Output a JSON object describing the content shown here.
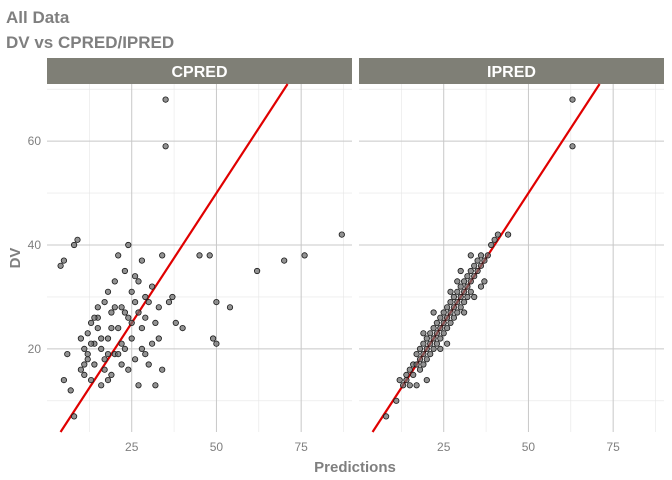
{
  "figure": {
    "title_line1": "All Data",
    "title_line2": "DV vs CPRED/IPRED",
    "xlabel": "Predictions",
    "ylabel": "DV"
  },
  "colors": {
    "strip_bg": "#7f7f76",
    "grid_major": "#c8c8c8",
    "grid_minor": "#e6e6e6",
    "point_fill": "#6e6e6e",
    "point_stroke": "#1a1a1a",
    "identity_line": "#e00000"
  },
  "chart_data": {
    "type": "scatter",
    "facet_by": "prediction type",
    "shared_axes": true,
    "xlim": [
      0,
      90
    ],
    "ylim": [
      4,
      71
    ],
    "x_ticks": [
      25,
      50,
      75
    ],
    "y_ticks": [
      20,
      40,
      60
    ],
    "grid": true,
    "reference_line": {
      "type": "identity",
      "slope": 1,
      "intercept": 0
    },
    "panels": [
      {
        "label": "CPRED",
        "points": [
          [
            4,
            36
          ],
          [
            5,
            37
          ],
          [
            5,
            14
          ],
          [
            6,
            19
          ],
          [
            7,
            12
          ],
          [
            8,
            40
          ],
          [
            9,
            41
          ],
          [
            8,
            7
          ],
          [
            10,
            16
          ],
          [
            10,
            22
          ],
          [
            11,
            20
          ],
          [
            11,
            15
          ],
          [
            12,
            18
          ],
          [
            12,
            23
          ],
          [
            13,
            25
          ],
          [
            13,
            14
          ],
          [
            14,
            21
          ],
          [
            14,
            17
          ],
          [
            15,
            24
          ],
          [
            15,
            26
          ],
          [
            16,
            20
          ],
          [
            16,
            13
          ],
          [
            17,
            29
          ],
          [
            17,
            18
          ],
          [
            18,
            22
          ],
          [
            18,
            31
          ],
          [
            19,
            27
          ],
          [
            19,
            15
          ],
          [
            20,
            33
          ],
          [
            20,
            19
          ],
          [
            21,
            24
          ],
          [
            21,
            38
          ],
          [
            22,
            28
          ],
          [
            22,
            17
          ],
          [
            23,
            35
          ],
          [
            23,
            20
          ],
          [
            24,
            26
          ],
          [
            24,
            40
          ],
          [
            25,
            22
          ],
          [
            25,
            31
          ],
          [
            26,
            18
          ],
          [
            26,
            34
          ],
          [
            27,
            27
          ],
          [
            27,
            13
          ],
          [
            28,
            37
          ],
          [
            28,
            24
          ],
          [
            29,
            30
          ],
          [
            29,
            19
          ],
          [
            30,
            29
          ],
          [
            31,
            32
          ],
          [
            31,
            21
          ],
          [
            32,
            25
          ],
          [
            32,
            13
          ],
          [
            33,
            28
          ],
          [
            34,
            38
          ],
          [
            34,
            16
          ],
          [
            35,
            68
          ],
          [
            35,
            59
          ],
          [
            36,
            29
          ],
          [
            37,
            30
          ],
          [
            38,
            25
          ],
          [
            40,
            24
          ],
          [
            45,
            38
          ],
          [
            48,
            38
          ],
          [
            49,
            22
          ],
          [
            50,
            21
          ],
          [
            50,
            29
          ],
          [
            54,
            28
          ],
          [
            62,
            35
          ],
          [
            70,
            37
          ],
          [
            76,
            38
          ],
          [
            87,
            42
          ],
          [
            12,
            19
          ],
          [
            14,
            26
          ],
          [
            16,
            22
          ],
          [
            18,
            14
          ],
          [
            20,
            28
          ],
          [
            22,
            21
          ],
          [
            24,
            16
          ],
          [
            26,
            29
          ],
          [
            28,
            20
          ],
          [
            30,
            17
          ],
          [
            15,
            28
          ],
          [
            19,
            24
          ],
          [
            23,
            27
          ],
          [
            27,
            33
          ],
          [
            21,
            19
          ],
          [
            25,
            25
          ],
          [
            13,
            21
          ],
          [
            17,
            16
          ],
          [
            29,
            26
          ],
          [
            33,
            22
          ],
          [
            11,
            17
          ],
          [
            18,
            19
          ]
        ]
      },
      {
        "label": "IPRED",
        "points": [
          [
            8,
            7
          ],
          [
            11,
            10
          ],
          [
            12,
            14
          ],
          [
            13,
            13
          ],
          [
            14,
            14
          ],
          [
            14,
            15
          ],
          [
            15,
            13
          ],
          [
            15,
            16
          ],
          [
            16,
            15
          ],
          [
            16,
            17
          ],
          [
            17,
            17
          ],
          [
            17,
            19
          ],
          [
            18,
            16
          ],
          [
            18,
            18
          ],
          [
            18,
            20
          ],
          [
            19,
            19
          ],
          [
            19,
            21
          ],
          [
            19,
            17
          ],
          [
            20,
            20
          ],
          [
            20,
            22
          ],
          [
            20,
            18
          ],
          [
            21,
            21
          ],
          [
            21,
            23
          ],
          [
            21,
            19
          ],
          [
            22,
            22
          ],
          [
            22,
            24
          ],
          [
            22,
            20
          ],
          [
            23,
            23
          ],
          [
            23,
            25
          ],
          [
            23,
            21
          ],
          [
            24,
            24
          ],
          [
            24,
            26
          ],
          [
            24,
            22
          ],
          [
            25,
            25
          ],
          [
            25,
            27
          ],
          [
            25,
            23
          ],
          [
            26,
            26
          ],
          [
            26,
            28
          ],
          [
            26,
            24
          ],
          [
            27,
            27
          ],
          [
            27,
            29
          ],
          [
            27,
            25
          ],
          [
            28,
            28
          ],
          [
            28,
            30
          ],
          [
            28,
            26
          ],
          [
            29,
            29
          ],
          [
            29,
            31
          ],
          [
            29,
            27
          ],
          [
            30,
            30
          ],
          [
            30,
            32
          ],
          [
            30,
            28
          ],
          [
            31,
            31
          ],
          [
            31,
            33
          ],
          [
            31,
            29
          ],
          [
            32,
            32
          ],
          [
            32,
            34
          ],
          [
            32,
            30
          ],
          [
            33,
            33
          ],
          [
            33,
            35
          ],
          [
            33,
            31
          ],
          [
            34,
            34
          ],
          [
            34,
            36
          ],
          [
            35,
            35
          ],
          [
            35,
            37
          ],
          [
            36,
            36
          ],
          [
            36,
            38
          ],
          [
            37,
            37
          ],
          [
            38,
            38
          ],
          [
            39,
            40
          ],
          [
            40,
            41
          ],
          [
            41,
            42
          ],
          [
            44,
            42
          ],
          [
            63,
            68
          ],
          [
            63,
            59
          ],
          [
            17,
            13
          ],
          [
            20,
            14
          ],
          [
            19,
            23
          ],
          [
            24,
            20
          ],
          [
            27,
            31
          ],
          [
            30,
            35
          ],
          [
            34,
            30
          ],
          [
            37,
            33
          ],
          [
            22,
            27
          ],
          [
            26,
            21
          ],
          [
            29,
            33
          ],
          [
            31,
            27
          ],
          [
            33,
            38
          ],
          [
            36,
            32
          ]
        ]
      }
    ]
  }
}
